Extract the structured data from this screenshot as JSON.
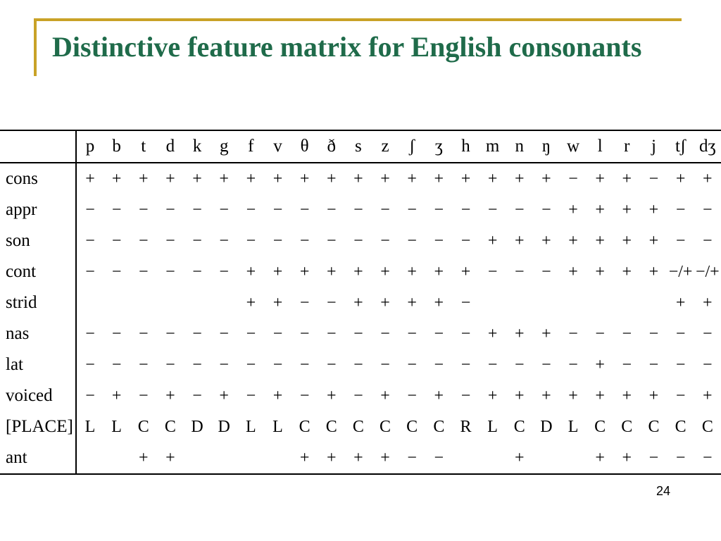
{
  "title": "Distinctive feature matrix for English consonants",
  "title_color": "#1f6b4a",
  "title_fontsize": 40,
  "accent_border_color": "#c9a227",
  "page_number": "24",
  "matrix": {
    "type": "table",
    "font_family": "Times New Roman",
    "cell_fontsize": 24,
    "header_fontsize": 25,
    "small_cell_fontsize": 14,
    "border_color": "#000000",
    "background_color": "#ffffff",
    "columns": [
      "p",
      "b",
      "t",
      "d",
      "k",
      "g",
      "f",
      "v",
      "θ",
      "ð",
      "s",
      "z",
      "ʃ",
      "ʒ",
      "h",
      "m",
      "n",
      "ŋ",
      "w",
      "l",
      "r",
      "j",
      "tʃ",
      "dʒ"
    ],
    "row_labels": [
      "cons",
      "appr",
      "son",
      "cont",
      "strid",
      "nas",
      "lat",
      "voiced",
      "[PLACE]",
      "ant"
    ],
    "rows": [
      [
        "+",
        "+",
        "+",
        "+",
        "+",
        "+",
        "+",
        "+",
        "+",
        "+",
        "+",
        "+",
        "+",
        "+",
        "+",
        "+",
        "+",
        "+",
        "−",
        "+",
        "+",
        "−",
        "+",
        "+"
      ],
      [
        "−",
        "−",
        "−",
        "−",
        "−",
        "−",
        "−",
        "−",
        "−",
        "−",
        "−",
        "−",
        "−",
        "−",
        "−",
        "−",
        "−",
        "−",
        "+",
        "+",
        "+",
        "+",
        "−",
        "−"
      ],
      [
        "−",
        "−",
        "−",
        "−",
        "−",
        "−",
        "−",
        "−",
        "−",
        "−",
        "−",
        "−",
        "−",
        "−",
        "−",
        "+",
        "+",
        "+",
        "+",
        "+",
        "+",
        "+",
        "−",
        "−"
      ],
      [
        "−",
        "−",
        "−",
        "−",
        "−",
        "−",
        "+",
        "+",
        "+",
        "+",
        "+",
        "+",
        "+",
        "+",
        "+",
        "−",
        "−",
        "−",
        "+",
        "+",
        "+",
        "+",
        "−/+",
        "−/+"
      ],
      [
        "",
        "",
        "",
        "",
        "",
        "",
        "+",
        "+",
        "−",
        "−",
        "+",
        "+",
        "+",
        "+",
        "−",
        "",
        "",
        "",
        "",
        "",
        "",
        "",
        "+",
        "+"
      ],
      [
        "−",
        "−",
        "−",
        "−",
        "−",
        "−",
        "−",
        "−",
        "−",
        "−",
        "−",
        "−",
        "−",
        "−",
        "−",
        "+",
        "+",
        "+",
        "−",
        "−",
        "−",
        "−",
        "−",
        "−"
      ],
      [
        "−",
        "−",
        "−",
        "−",
        "−",
        "−",
        "−",
        "−",
        "−",
        "−",
        "−",
        "−",
        "−",
        "−",
        "−",
        "−",
        "−",
        "−",
        "−",
        "+",
        "−",
        "−",
        "−",
        "−"
      ],
      [
        "−",
        "+",
        "−",
        "+",
        "−",
        "+",
        "−",
        "+",
        "−",
        "+",
        "−",
        "+",
        "−",
        "+",
        "−",
        "+",
        "+",
        "+",
        "+",
        "+",
        "+",
        "+",
        "−",
        "+"
      ],
      [
        "L",
        "L",
        "C",
        "C",
        "D",
        "D",
        "L",
        "L",
        "C",
        "C",
        "C",
        "C",
        "C",
        "C",
        "R",
        "L",
        "C",
        "D",
        "L",
        "C",
        "C",
        "C",
        "C",
        "C"
      ],
      [
        "",
        "",
        "+",
        "+",
        "",
        "",
        "",
        "",
        "+",
        "+",
        "+",
        "+",
        "−",
        "−",
        "",
        "",
        "+",
        "",
        "",
        "+",
        "+",
        "−",
        "−",
        "−"
      ]
    ]
  }
}
